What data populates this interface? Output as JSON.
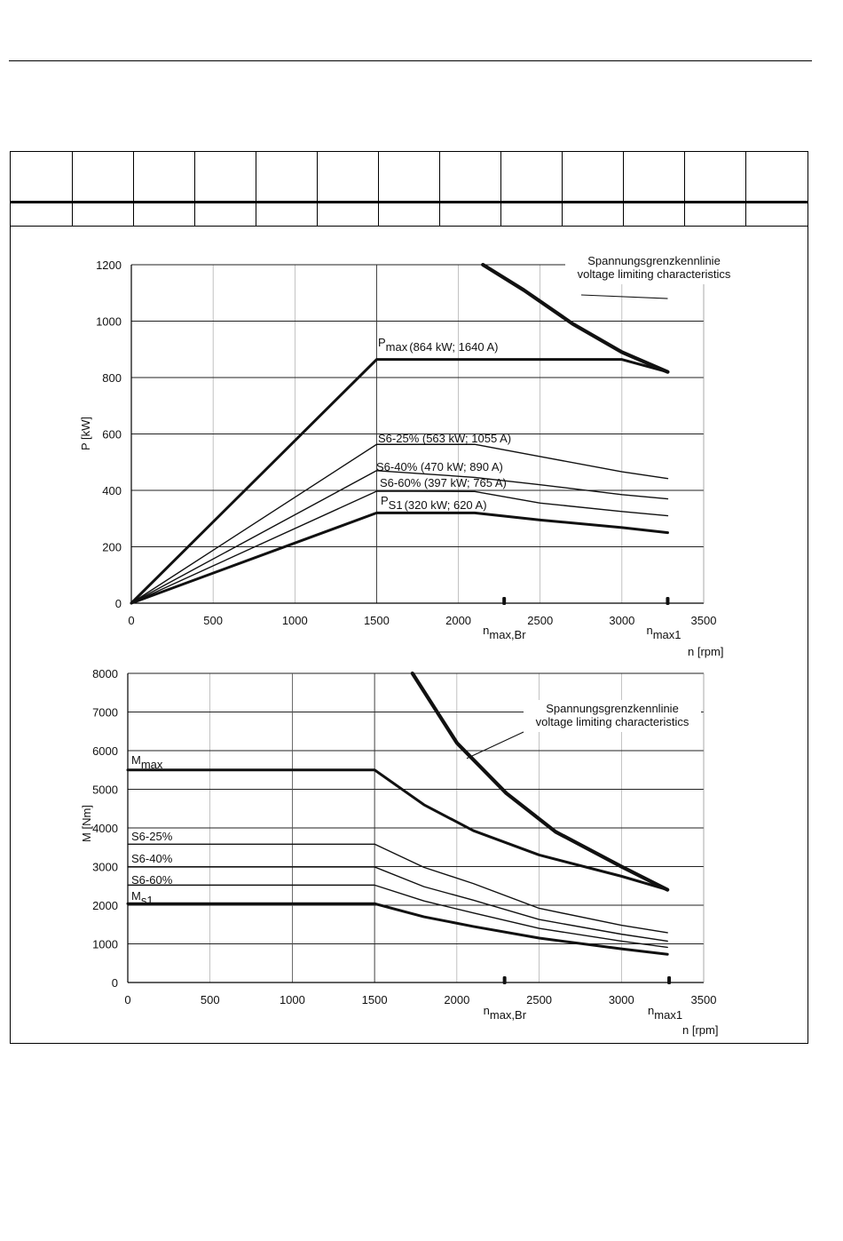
{
  "chart_data": [
    {
      "type": "line",
      "xlim": [
        0,
        3500
      ],
      "ylim": [
        0,
        1200
      ],
      "x_ticks": [
        "0",
        "500",
        "1000",
        "1500",
        "2000",
        "2500",
        "3000",
        "3500"
      ],
      "y_ticks": [
        "0",
        "200",
        "400",
        "600",
        "800",
        "1000",
        "1200"
      ],
      "ylabel": "P [kW]",
      "xlabel": "n [rpm]",
      "markers": [
        {
          "x": 2280,
          "label": "n",
          "sub": "max,Br"
        },
        {
          "x": 3280,
          "label": "n",
          "sub": "max1"
        }
      ],
      "series": [
        {
          "name": "Pmax",
          "label_main": "P",
          "label_sub": "max",
          "label_note": "(864 kW; 1640 A)",
          "weight": "bold",
          "x": [
            0,
            1500,
            3000,
            3280
          ],
          "y": [
            0,
            864,
            864,
            820
          ]
        },
        {
          "name": "S6-25%",
          "label_main": "S6-25% (563 kW; 1055 A)",
          "weight": "thin",
          "x": [
            0,
            1500,
            2100,
            2500,
            3000,
            3280
          ],
          "y": [
            0,
            563,
            563,
            520,
            466,
            442
          ]
        },
        {
          "name": "S6-40%",
          "label_main": "S6-40% (470 kW; 890 A)",
          "weight": "thin",
          "x": [
            0,
            1500,
            2100,
            2500,
            3000,
            3280
          ],
          "y": [
            0,
            470,
            446,
            420,
            385,
            370
          ]
        },
        {
          "name": "S6-60%",
          "label_main": "S6-60% (397 kW; 765 A)",
          "weight": "thin",
          "x": [
            0,
            1500,
            2100,
            2500,
            3000,
            3280
          ],
          "y": [
            0,
            397,
            396,
            355,
            325,
            310
          ]
        },
        {
          "name": "PS1",
          "label_main": "P",
          "label_sub": "S1",
          "label_note": "(320 kW; 620 A)",
          "weight": "bold",
          "x": [
            0,
            1500,
            2100,
            2500,
            3000,
            3280
          ],
          "y": [
            0,
            320,
            320,
            295,
            268,
            250
          ]
        },
        {
          "name": "voltage limit",
          "weight": "boldest",
          "x": [
            2150,
            2400,
            2700,
            3000,
            3280
          ],
          "y": [
            1200,
            1110,
            990,
            890,
            820
          ]
        }
      ],
      "annotation": {
        "line1": "Spannungsgrenzkennlinie",
        "line2": "voltage limiting characteristics"
      }
    },
    {
      "type": "line",
      "xlim": [
        0,
        3500
      ],
      "ylim": [
        0,
        8000
      ],
      "x_ticks": [
        "0",
        "500",
        "1000",
        "1500",
        "2000",
        "2500",
        "3000",
        "3500"
      ],
      "y_ticks": [
        "0",
        "1000",
        "2000",
        "3000",
        "4000",
        "5000",
        "6000",
        "7000",
        "8000"
      ],
      "ylabel": "M [Nm]",
      "xlabel": "n [rpm]",
      "markers": [
        {
          "x": 2290,
          "label": "n",
          "sub": "max,Br"
        },
        {
          "x": 3290,
          "label": "n",
          "sub": "max1"
        }
      ],
      "series": [
        {
          "name": "Mmax",
          "label_main": "M",
          "label_sub": "max",
          "weight": "bold",
          "x": [
            0,
            1500,
            1800,
            2100,
            2500,
            3000,
            3280
          ],
          "y": [
            5500,
            5500,
            4600,
            3930,
            3300,
            2750,
            2400
          ]
        },
        {
          "name": "S6-25%",
          "label_main": "S6-25%",
          "weight": "thin",
          "x": [
            0,
            1500,
            1800,
            2100,
            2500,
            3000,
            3280
          ],
          "y": [
            3580,
            3580,
            2980,
            2560,
            1920,
            1480,
            1290
          ]
        },
        {
          "name": "S6-40%",
          "label_main": "S6-40%",
          "weight": "thin",
          "x": [
            0,
            1500,
            1800,
            2100,
            2500,
            3000,
            3280
          ],
          "y": [
            2990,
            2990,
            2480,
            2130,
            1630,
            1250,
            1070
          ]
        },
        {
          "name": "S6-60%",
          "label_main": "S6-60%",
          "weight": "thin",
          "x": [
            0,
            1500,
            1800,
            2100,
            2500,
            3000,
            3280
          ],
          "y": [
            2520,
            2520,
            2110,
            1800,
            1400,
            1070,
            910
          ]
        },
        {
          "name": "Ms1",
          "label_main": "M",
          "label_sub": "s1",
          "weight": "bold",
          "x": [
            0,
            1500,
            1800,
            2100,
            2500,
            3000,
            3280
          ],
          "y": [
            2040,
            2040,
            1700,
            1450,
            1150,
            870,
            730
          ]
        },
        {
          "name": "voltage limit",
          "weight": "boldest",
          "x": [
            1730,
            2000,
            2300,
            2600,
            3000,
            3280
          ],
          "y": [
            8000,
            6200,
            4900,
            3900,
            3000,
            2400
          ]
        }
      ],
      "annotation": {
        "line1": "Spannungsgrenzkennlinie",
        "line2": "voltage limiting characteristics"
      }
    }
  ]
}
